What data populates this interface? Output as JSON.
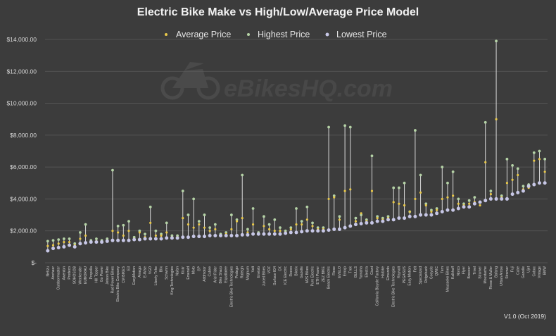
{
  "chart_data": {
    "type": "scatter",
    "title": "Electric Bike Make vs High/Low/Average Price Model",
    "ylim": [
      0,
      14000
    ],
    "yticks": [
      "$-",
      "$2,000.00",
      "$4,000.00",
      "$6,000.00",
      "$8,000.00",
      "$10,000.00",
      "$12,000.00",
      "$14,000.00"
    ],
    "grid": true,
    "legend": "top-center",
    "series": [
      {
        "name": "Average Price",
        "color": "#e8c84a"
      },
      {
        "name": "Highest Price",
        "color": "#b5d3a6"
      },
      {
        "name": "Lowest Price",
        "color": "#c7c7e6"
      }
    ],
    "categories": [
      "Nebzu",
      "Ancheer",
      "Outdoormaster",
      "Awenton",
      "Prodeco",
      "SOHOSOB",
      "Weekender",
      "EUNORAU",
      "Propella",
      "Hill Topper",
      "Go Power",
      "Jetson Bike",
      "Rad Power Bikes",
      "Electric Bike Company",
      "CM BIKES",
      "E3",
      "EasyMotion",
      "Amego",
      "E-Wise",
      "VGO",
      "Liberty Trike",
      "Blix",
      "Schwinn",
      "King Technologies",
      "Nafan",
      "Kickr",
      "Emerald",
      "Moto",
      "GP",
      "Addmotor",
      "Cutiee",
      "Ariel Rider",
      "Bike Sharp",
      "Espattalee",
      "Electric Bike Technologies",
      "Pedego",
      "Raleigh",
      "Magnum",
      "Volt",
      "Enviolo",
      "Juiced Bikes",
      "VOZ",
      "Surface 604",
      "CK",
      "ICE Electric",
      "Reevo",
      "Biktrix",
      "Gazelle",
      "M2S Bikes",
      "Pure Electric",
      "ETH Power",
      "ZEZ BIKE",
      "Beach Electric",
      "Riese",
      "EVELO",
      "Emojo",
      "Trek",
      "BULLS",
      "Yamaha",
      "Electra",
      "Giant",
      "California Bicycle Factory",
      "Haibike",
      "Elmundo",
      "Electric Bike Technologies",
      "Rayvolt",
      "PEGASUS",
      "Easy Motion",
      "Felt",
      "Specialized",
      "Ridgeback",
      "Gocycle",
      "QWIC",
      "Tern",
      "Mousseke Bikes",
      "Kalkhoff",
      "Norco",
      "Flyer",
      "Breezer",
      "Trivel",
      "Stromer",
      "Moustache",
      "Riese & Muller",
      "Bafang",
      "Urban Arrow",
      "Stromer",
      "Fuji",
      "Cube",
      "Gazelle",
      "Ujet",
      "Coboc",
      "Vintage",
      "BMW"
    ],
    "average": [
      1050,
      1100,
      1200,
      1300,
      1300,
      1100,
      1500,
      1700,
      1300,
      1350,
      1300,
      1400,
      2000,
      1900,
      1700,
      2000,
      1500,
      1900,
      1600,
      2500,
      1700,
      1700,
      1900,
      1600,
      1600,
      2800,
      2400,
      2200,
      2400,
      2200,
      2000,
      2100,
      1700,
      1800,
      2100,
      2600,
      2800,
      1900,
      2400,
      1800,
      2300,
      2100,
      2000,
      2000,
      1900,
      2100,
      2400,
      2400,
      2700,
      2300,
      2100,
      2100,
      4000,
      4100,
      2700,
      4500,
      4600,
      2600,
      3100,
      2600,
      4500,
      2800,
      2700,
      2800,
      3800,
      3700,
      3600,
      3200,
      4000,
      4400,
      3600,
      3200,
      3300,
      4000,
      4100,
      4200,
      3700,
      3600,
      3700,
      3800,
      3600,
      6300,
      4300,
      9000,
      4100,
      5000,
      5200,
      5500,
      4600,
      4700,
      6400,
      6500,
      5700
    ],
    "highest": [
      1350,
      1400,
      1450,
      1500,
      1500,
      1200,
      1900,
      2400,
      1400,
      1500,
      1400,
      1500,
      5800,
      2300,
      2350,
      2600,
      1600,
      2000,
      1800,
      3500,
      2000,
      1800,
      2500,
      1700,
      1700,
      4500,
      3000,
      4000,
      2600,
      3000,
      2200,
      2400,
      1800,
      1900,
      3000,
      2700,
      5500,
      2100,
      3400,
      1900,
      2900,
      2400,
      2700,
      2200,
      2000,
      2200,
      3400,
      2600,
      3500,
      2500,
      2200,
      2200,
      8500,
      4200,
      2900,
      8600,
      8500,
      2800,
      3000,
      2700,
      6700,
      2900,
      2800,
      2900,
      4700,
      4700,
      5000,
      3200,
      8300,
      5500,
      3700,
      3300,
      3400,
      6000,
      5000,
      5700,
      4000,
      3700,
      3900,
      4100,
      3800,
      8800,
      4500,
      13900,
      4200,
      6500,
      6100,
      5900,
      4800,
      4900,
      6900,
      7000,
      6500
    ],
    "lowest": [
      750,
      900,
      950,
      1000,
      1100,
      1000,
      1200,
      1250,
      1300,
      1300,
      1300,
      1350,
      1400,
      1400,
      1400,
      1400,
      1450,
      1450,
      1500,
      1500,
      1500,
      1500,
      1550,
      1550,
      1550,
      1600,
      1600,
      1650,
      1650,
      1650,
      1700,
      1700,
      1700,
      1700,
      1700,
      1700,
      1750,
      1750,
      1800,
      1800,
      1800,
      1800,
      1800,
      1800,
      1850,
      1900,
      1900,
      1950,
      2000,
      2000,
      2000,
      2000,
      2050,
      2100,
      2100,
      2200,
      2300,
      2400,
      2450,
      2500,
      2500,
      2600,
      2600,
      2700,
      2700,
      2800,
      2800,
      2900,
      2900,
      3000,
      3000,
      3000,
      3100,
      3200,
      3300,
      3300,
      3400,
      3500,
      3500,
      3700,
      3800,
      3900,
      4000,
      4000,
      4000,
      4000,
      4300,
      4400,
      4500,
      4800,
      4900,
      5000,
      5000
    ]
  },
  "footer": {
    "version": "V1.0 (Oct 2019)"
  },
  "watermark": {
    "text": "eBikesHQ.com"
  }
}
